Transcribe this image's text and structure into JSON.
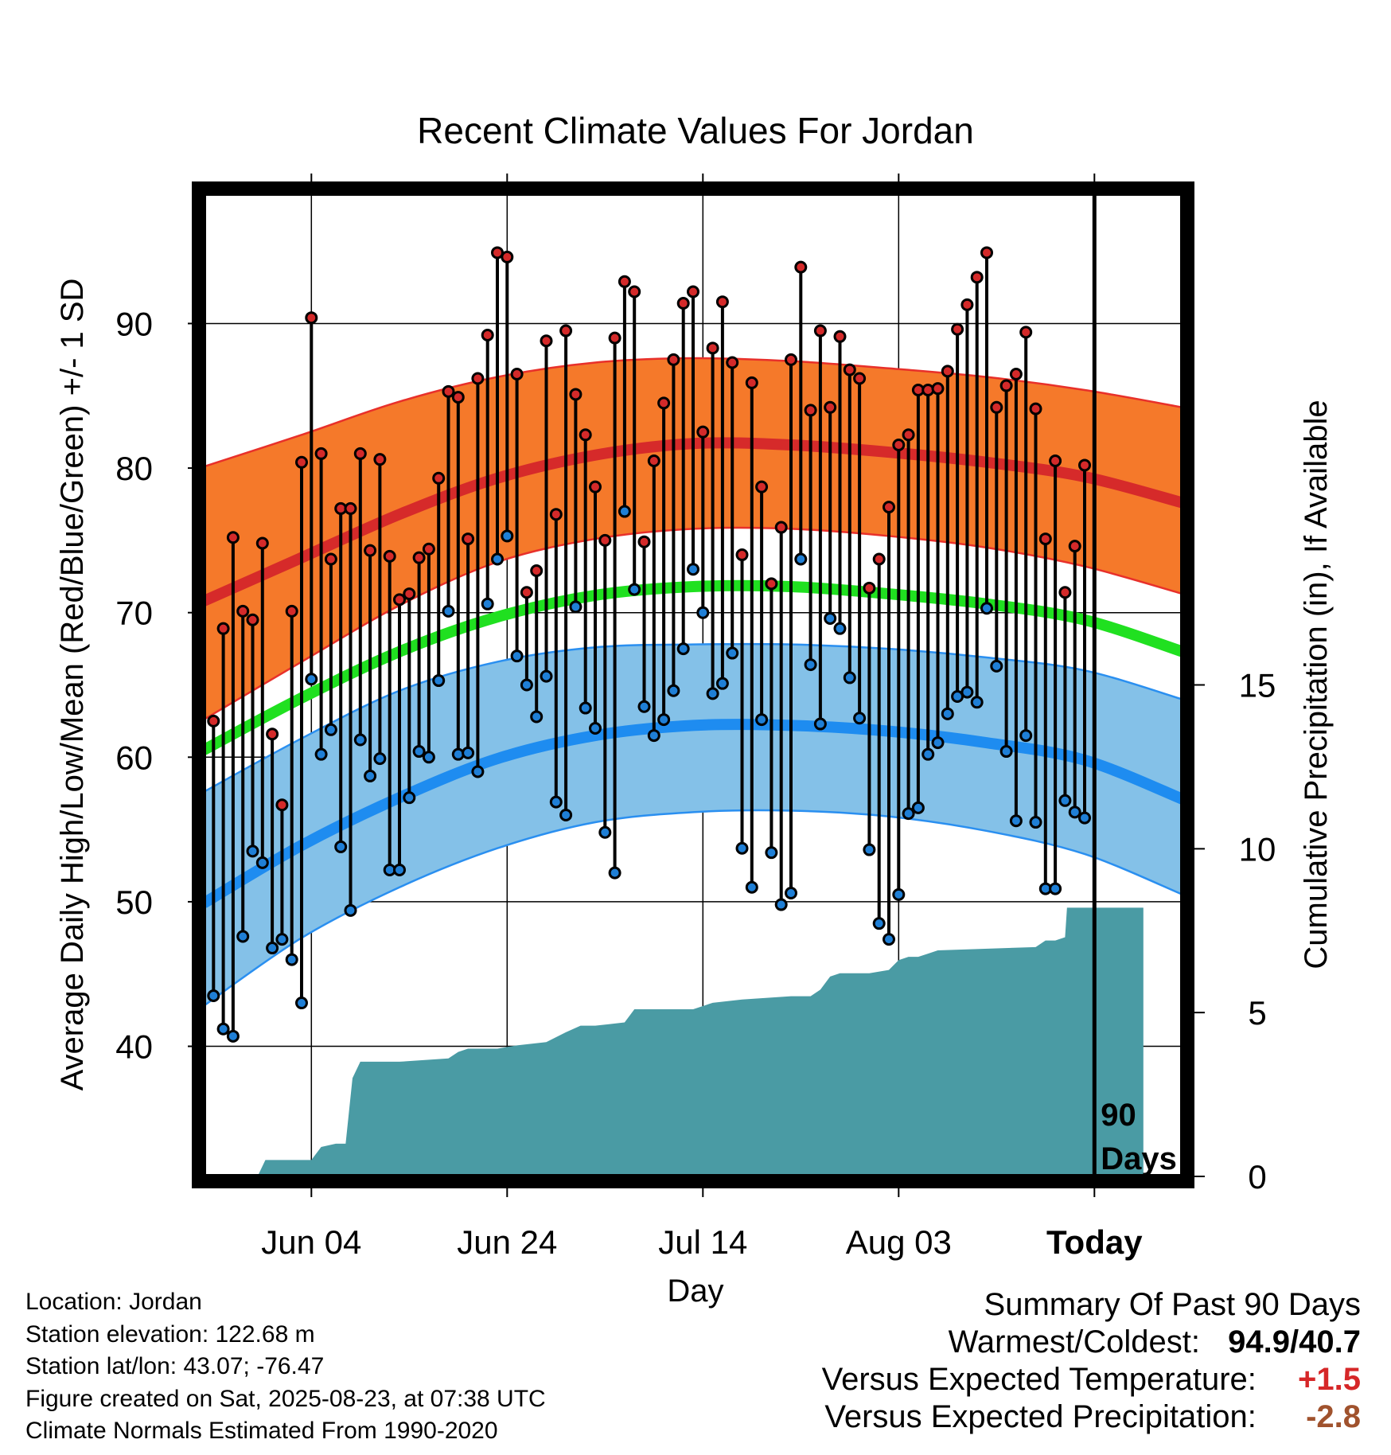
{
  "info": {
    "location": "Location: Jordan",
    "elevation": "Station elevation: 122.68 m",
    "latlon": "Station lat/lon: 43.07; -76.47",
    "created": "Figure created on Sat, 2025-08-23, at 07:38 UTC",
    "normals": "Climate Normals Estimated From 1990-2020"
  },
  "summary": {
    "heading": "Summary Of Past 90 Days",
    "warm_cold_label": "Warmest/Coldest:",
    "warmest": "94.9",
    "slash": "/",
    "coldest": "40.7",
    "temp_label": "Versus Expected Temperature:",
    "temp_value": "+1.5",
    "temp_color": "#d62728",
    "precip_label": "Versus Expected Precipitation:",
    "precip_value": "-2.8",
    "precip_color": "#a0522d"
  },
  "chart_data": {
    "type": "line",
    "title": "Recent Climate Values For Jordan",
    "xlabel": "Day",
    "ylabel": "Average Daily High/Low/Mean (Red/Blue/Green) +/- 1 SD",
    "y2label": "Cumulative Precipitation (in), If Available",
    "today_label": "90 Days",
    "x_ticks": [
      {
        "day": 11,
        "label": "Jun 04"
      },
      {
        "day": 31,
        "label": "Jun 24"
      },
      {
        "day": 51,
        "label": "Jul 14"
      },
      {
        "day": 71,
        "label": "Aug 03"
      },
      {
        "day": 91,
        "label": "Today"
      }
    ],
    "x_range": [
      0,
      100
    ],
    "today_day": 91,
    "ylim": [
      31,
      99
    ],
    "y_ticks": [
      40,
      50,
      60,
      70,
      80,
      90
    ],
    "y2lim": [
      0,
      30
    ],
    "y2_ticks": [
      0,
      5,
      10,
      15
    ],
    "colors": {
      "high_band": "#f5792a",
      "high_edge": "#e8302a",
      "high_mean": "#d62a2a",
      "low_band": "#84c1e8",
      "low_edge": "#2a8ff0",
      "low_mean": "#1e8cf0",
      "mean_line": "#20e020",
      "high_dot": "#d42a2a",
      "low_dot": "#1f7fd6",
      "precip": "#4a9ba4"
    },
    "normals": {
      "day": [
        0,
        10,
        20,
        30,
        40,
        50,
        60,
        70,
        80,
        90,
        100
      ],
      "high_mean": [
        70.8,
        73.8,
        76.8,
        79.3,
        80.9,
        81.7,
        81.6,
        81.1,
        80.4,
        79.4,
        77.6
      ],
      "high_upper": [
        80.1,
        82.3,
        84.6,
        86.3,
        87.3,
        87.6,
        87.4,
        86.9,
        86.3,
        85.4,
        84.2
      ],
      "high_lower": [
        62.6,
        66.6,
        70.5,
        73.5,
        75.1,
        75.8,
        75.8,
        75.3,
        74.5,
        73.2,
        71.3
      ],
      "mean": [
        60.5,
        64.1,
        67.3,
        69.7,
        71.2,
        71.8,
        71.8,
        71.3,
        70.6,
        69.5,
        67.3
      ],
      "low_mean": [
        49.9,
        53.9,
        57.2,
        59.9,
        61.5,
        62.2,
        62.2,
        61.8,
        61.0,
        59.8,
        57.1
      ],
      "low_upper": [
        57.6,
        61.3,
        64.6,
        66.6,
        67.6,
        67.8,
        67.8,
        67.5,
        66.9,
        66.0,
        64.0
      ],
      "low_lower": [
        42.8,
        47.5,
        51.0,
        53.7,
        55.5,
        56.2,
        56.3,
        55.9,
        54.9,
        53.3,
        50.5
      ]
    },
    "daily": {
      "day": [
        1,
        2,
        3,
        4,
        5,
        6,
        7,
        8,
        9,
        10,
        11,
        12,
        13,
        14,
        15,
        16,
        17,
        18,
        19,
        20,
        21,
        22,
        23,
        24,
        25,
        26,
        27,
        28,
        29,
        30,
        31,
        32,
        33,
        34,
        35,
        36,
        37,
        38,
        39,
        40,
        41,
        42,
        43,
        44,
        45,
        46,
        47,
        48,
        49,
        50,
        51,
        52,
        53,
        54,
        55,
        56,
        57,
        58,
        59,
        60,
        61,
        62,
        63,
        64,
        65,
        66,
        67,
        68,
        69,
        70,
        71,
        72,
        73,
        74,
        75,
        76,
        77,
        78,
        79,
        80,
        81,
        82,
        83,
        84,
        85,
        86,
        87,
        88,
        89,
        90
      ],
      "high": [
        62.5,
        68.9,
        75.2,
        70.1,
        69.5,
        74.8,
        61.6,
        56.7,
        70.1,
        80.4,
        90.4,
        81.0,
        73.7,
        77.2,
        77.2,
        81.0,
        74.3,
        80.6,
        73.9,
        70.9,
        71.3,
        73.8,
        74.4,
        79.3,
        85.3,
        84.9,
        75.1,
        86.2,
        89.2,
        94.9,
        94.6,
        86.5,
        71.4,
        72.9,
        88.8,
        76.8,
        89.5,
        85.1,
        82.3,
        78.7,
        75.0,
        89.0,
        92.9,
        92.2,
        74.9,
        80.5,
        84.5,
        87.5,
        91.4,
        92.2,
        82.5,
        88.3,
        91.5,
        87.3,
        74.0,
        85.9,
        78.7,
        72.0,
        75.9,
        87.5,
        93.9,
        84.0,
        89.5,
        84.2,
        89.1,
        86.8,
        86.2,
        71.7,
        73.7,
        77.3,
        81.6,
        82.3,
        85.4,
        85.4,
        85.5,
        86.7,
        89.6,
        91.3,
        93.2,
        94.9,
        84.2,
        85.7,
        86.5,
        89.4,
        84.1,
        75.1,
        80.5,
        71.4,
        74.6,
        80.2
      ],
      "low": [
        43.5,
        41.2,
        40.7,
        47.6,
        53.5,
        52.7,
        46.8,
        47.4,
        46.0,
        43.0,
        65.4,
        60.2,
        61.9,
        53.8,
        49.4,
        61.2,
        58.7,
        59.9,
        52.2,
        52.2,
        57.2,
        60.4,
        60.0,
        65.3,
        70.1,
        60.2,
        60.3,
        59.0,
        70.6,
        73.7,
        75.3,
        67.0,
        65.0,
        62.8,
        65.6,
        56.9,
        56.0,
        70.4,
        63.4,
        62.0,
        54.8,
        52.0,
        77.0,
        71.6,
        63.5,
        61.5,
        62.6,
        64.6,
        67.5,
        73.0,
        70.0,
        64.4,
        65.1,
        67.2,
        53.7,
        51.0,
        62.6,
        53.4,
        49.8,
        50.6,
        73.7,
        66.4,
        62.3,
        69.6,
        68.9,
        65.5,
        62.7,
        53.6,
        48.5,
        47.4,
        50.5,
        56.1,
        56.5,
        60.2,
        61.0,
        63.0,
        64.2,
        64.5,
        63.8,
        70.3,
        66.3,
        60.4,
        55.6,
        61.5,
        55.5,
        50.9,
        50.9,
        57.0,
        56.2,
        55.8
      ]
    },
    "precip": {
      "day": [
        0,
        5.5,
        6.3,
        11,
        12,
        13.5,
        14.5,
        15.2,
        16,
        20,
        25,
        26,
        27,
        30,
        32,
        35,
        37,
        38.5,
        40,
        43,
        44,
        45,
        50,
        52,
        55,
        60,
        62,
        63,
        64,
        65,
        68,
        70,
        71,
        72,
        73,
        74,
        75,
        85,
        86,
        87,
        88,
        88.2,
        96
      ],
      "value": [
        0,
        0,
        0.5,
        0.5,
        0.9,
        1.0,
        1.0,
        3.0,
        3.5,
        3.5,
        3.6,
        3.8,
        3.9,
        3.9,
        4.0,
        4.1,
        4.4,
        4.6,
        4.6,
        4.7,
        5.1,
        5.1,
        5.1,
        5.3,
        5.4,
        5.5,
        5.5,
        5.7,
        6.1,
        6.2,
        6.2,
        6.3,
        6.6,
        6.7,
        6.7,
        6.8,
        6.9,
        7.0,
        7.2,
        7.2,
        7.3,
        8.2,
        8.2
      ]
    }
  }
}
